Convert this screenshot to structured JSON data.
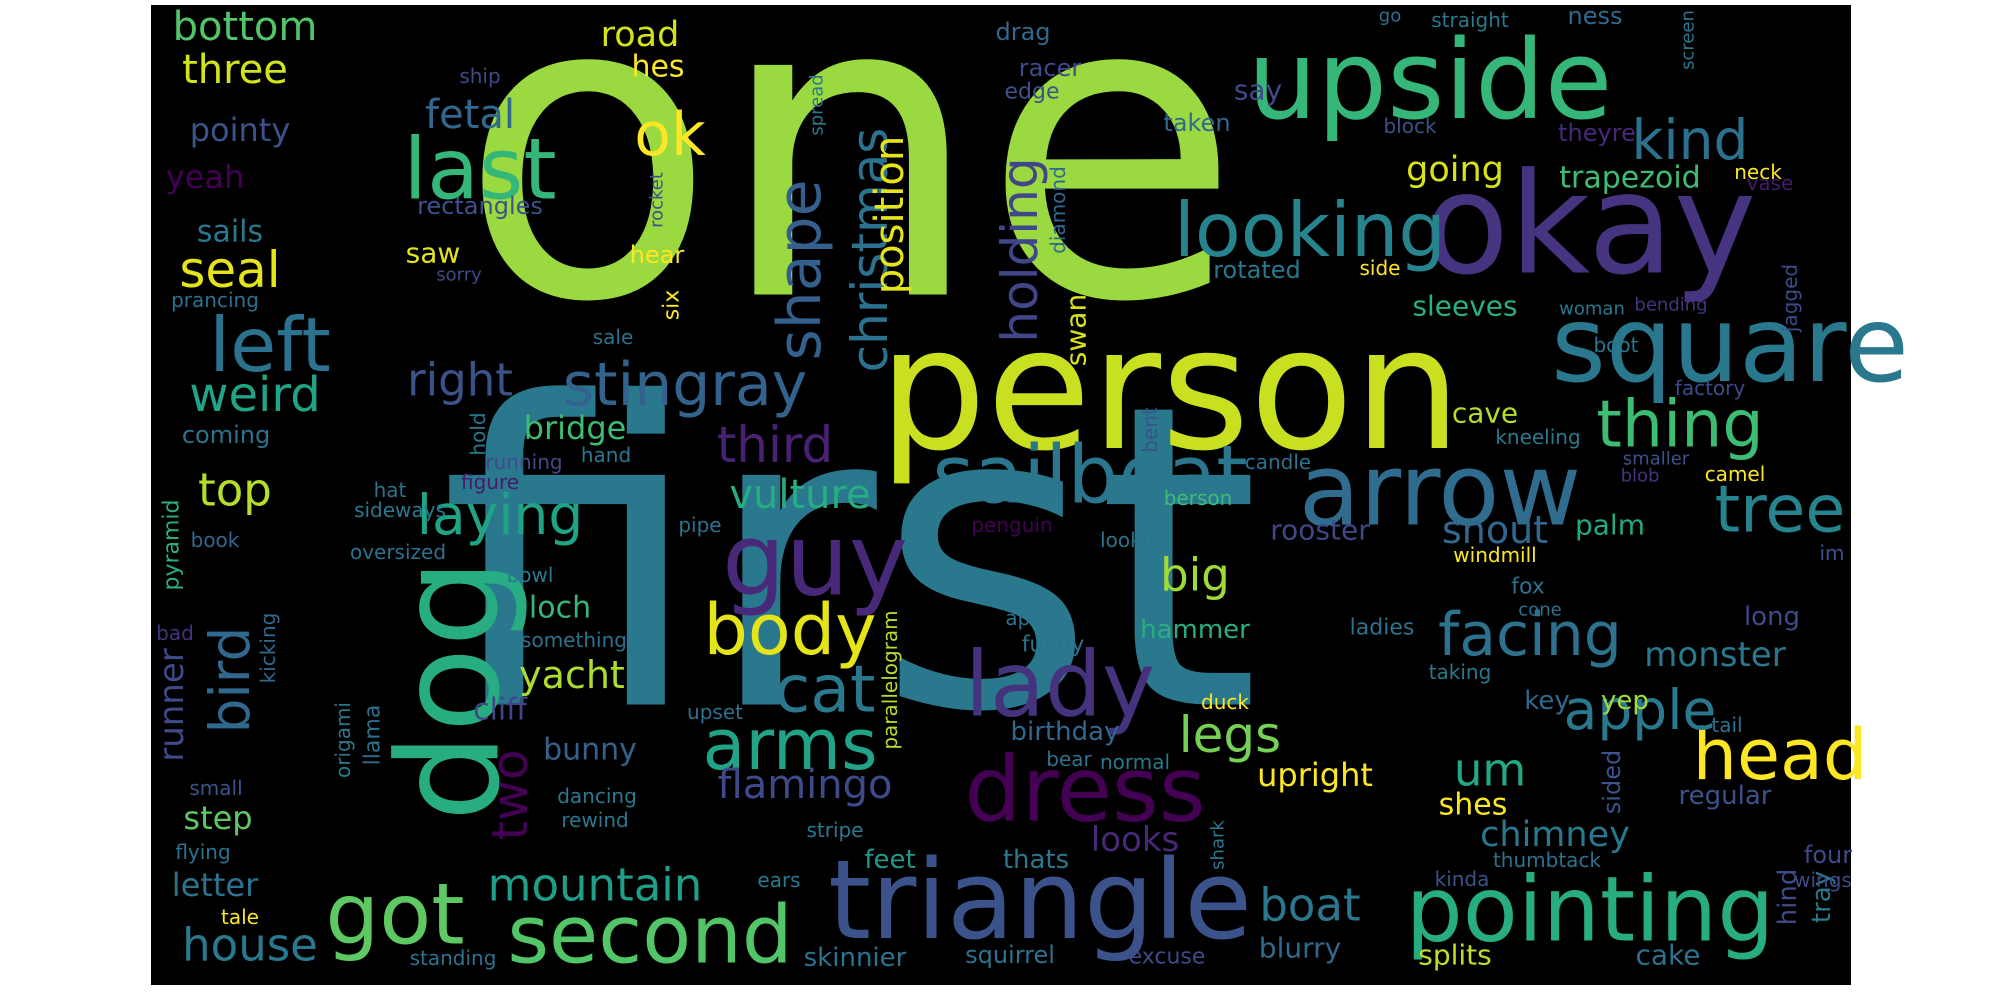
{
  "background_color": "#000000",
  "page_color": "#ffffff",
  "colormap": "viridis",
  "words": [
    {
      "text": "one",
      "color": "#9bd940"
    },
    {
      "text": "first",
      "color": "#2a788e"
    },
    {
      "text": "person",
      "color": "#c8e020"
    },
    {
      "text": "upside",
      "color": "#35b779"
    },
    {
      "text": "okay",
      "color": "#463480"
    },
    {
      "text": "square",
      "color": "#2a788e"
    },
    {
      "text": "arrow",
      "color": "#2f6c8e"
    },
    {
      "text": "triangle",
      "color": "#3b528b"
    },
    {
      "text": "dog",
      "color": "#27ad81"
    },
    {
      "text": "sailboat",
      "color": "#2a768e"
    },
    {
      "text": "pointing",
      "color": "#27ad81"
    },
    {
      "text": "second",
      "color": "#52c569"
    },
    {
      "text": "guy",
      "color": "#482878"
    },
    {
      "text": "dress",
      "color": "#440154"
    },
    {
      "text": "lady",
      "color": "#46337e"
    },
    {
      "text": "last",
      "color": "#35b779"
    },
    {
      "text": "looking",
      "color": "#25848e"
    },
    {
      "text": "head",
      "color": "#fde725"
    },
    {
      "text": "body",
      "color": "#e5e419"
    },
    {
      "text": "got",
      "color": "#5ec962"
    },
    {
      "text": "arms",
      "color": "#20a386"
    },
    {
      "text": "left",
      "color": "#2c728e"
    },
    {
      "text": "thing",
      "color": "#3dbc74"
    },
    {
      "text": "tree",
      "color": "#25848e"
    },
    {
      "text": "facing",
      "color": "#2c728e"
    },
    {
      "text": "cat",
      "color": "#2a788e"
    },
    {
      "text": "stingray",
      "color": "#33638d"
    },
    {
      "text": "right",
      "color": "#3b528b"
    },
    {
      "text": "mountain",
      "color": "#1f9e89"
    },
    {
      "text": "shape",
      "color": "#355f8d"
    },
    {
      "text": "laying",
      "color": "#20a486"
    },
    {
      "text": "third",
      "color": "#482173"
    },
    {
      "text": "ok",
      "color": "#fde725"
    },
    {
      "text": "christmas",
      "color": "#2c728e"
    },
    {
      "text": "holding",
      "color": "#404688"
    },
    {
      "text": "apple",
      "color": "#2a788e"
    },
    {
      "text": "house",
      "color": "#2a788e"
    },
    {
      "text": "seal",
      "color": "#e5e419"
    },
    {
      "text": "weird",
      "color": "#20a486"
    },
    {
      "text": "bird",
      "color": "#31688e"
    },
    {
      "text": "kind",
      "color": "#2d708e"
    },
    {
      "text": "boat",
      "color": "#2a788e"
    },
    {
      "text": "legs",
      "color": "#75d054"
    },
    {
      "text": "flamingo",
      "color": "#3e4a89"
    },
    {
      "text": "position",
      "color": "#e5e419"
    },
    {
      "text": "vulture",
      "color": "#27ad81"
    },
    {
      "text": "big",
      "color": "#a0da39"
    },
    {
      "text": "two",
      "color": "#440154"
    },
    {
      "text": "um",
      "color": "#22a884"
    },
    {
      "text": "top",
      "color": "#b5de2b"
    },
    {
      "text": "snout",
      "color": "#31688e"
    },
    {
      "text": "bottom",
      "color": "#52c569"
    },
    {
      "text": "three",
      "color": "#d2e21b"
    },
    {
      "text": "fetal",
      "color": "#31688e"
    },
    {
      "text": "pointy",
      "color": "#3b528b"
    },
    {
      "text": "yacht",
      "color": "#addc30"
    },
    {
      "text": "monster",
      "color": "#2a788e"
    },
    {
      "text": "bird runner",
      "color": "#440154"
    },
    {
      "text": "runner",
      "color": "#3e4a89"
    },
    {
      "text": "road",
      "color": "#d2e21b"
    },
    {
      "text": "going",
      "color": "#d8e219"
    },
    {
      "text": "chimney",
      "color": "#2a788e"
    },
    {
      "text": "looks",
      "color": "#482878"
    },
    {
      "text": "letter",
      "color": "#2c728e"
    },
    {
      "text": "upright",
      "color": "#fde725"
    },
    {
      "text": "step",
      "color": "#5ec962"
    },
    {
      "text": "bridge",
      "color": "#3dbc74"
    },
    {
      "text": "cliff",
      "color": "#404688"
    },
    {
      "text": "bunny",
      "color": "#33638d"
    },
    {
      "text": "loch",
      "color": "#35b779"
    },
    {
      "text": "cave",
      "color": "#b5de2b"
    },
    {
      "text": "palm",
      "color": "#22a884"
    },
    {
      "text": "rooster",
      "color": "#404688"
    },
    {
      "text": "hammer",
      "color": "#29af7f"
    },
    {
      "text": "birthday",
      "color": "#31688e"
    },
    {
      "text": "shes",
      "color": "#fde725"
    },
    {
      "text": "feet",
      "color": "#1f988b"
    },
    {
      "text": "blurry",
      "color": "#31688e"
    },
    {
      "text": "splits",
      "color": "#bddf26"
    },
    {
      "text": "cake",
      "color": "#2c728e"
    },
    {
      "text": "skinnier",
      "color": "#2c728e"
    },
    {
      "text": "squirrel",
      "color": "#2c728e"
    },
    {
      "text": "trapezoid",
      "color": "#3dbc74"
    },
    {
      "text": "sleeves",
      "color": "#2ab07f"
    },
    {
      "text": "saw",
      "color": "#e5e419"
    },
    {
      "text": "sails",
      "color": "#2a788e"
    },
    {
      "text": "yeah",
      "color": "#440154"
    },
    {
      "text": "hes",
      "color": "#fde725"
    },
    {
      "text": "say",
      "color": "#3e4a89"
    },
    {
      "text": "drag",
      "color": "#31688e"
    },
    {
      "text": "racer",
      "color": "#3e4a89"
    },
    {
      "text": "edge",
      "color": "#3b528b"
    },
    {
      "text": "taken",
      "color": "#31688e"
    },
    {
      "text": "theyre",
      "color": "#482878"
    },
    {
      "text": "ness",
      "color": "#31688e"
    },
    {
      "text": "go",
      "color": "#2c728e"
    },
    {
      "text": "straight",
      "color": "#2a788e"
    },
    {
      "text": "screen",
      "color": "#2a788e"
    },
    {
      "text": "block",
      "color": "#3b528b"
    },
    {
      "text": "neck",
      "color": "#fde725"
    },
    {
      "text": "vase",
      "color": "#481a6c"
    },
    {
      "text": "swan",
      "color": "#d8e219"
    },
    {
      "text": "diamond",
      "color": "#31688e"
    },
    {
      "text": "rotated",
      "color": "#2a788e"
    },
    {
      "text": "side",
      "color": "#fde725"
    },
    {
      "text": "jagged",
      "color": "#3e4a89"
    },
    {
      "text": "woman",
      "color": "#2a788e"
    },
    {
      "text": "bending",
      "color": "#46337e"
    },
    {
      "text": "factory",
      "color": "#3e4a89"
    },
    {
      "text": "boot",
      "color": "#2a788e"
    },
    {
      "text": "kneeling",
      "color": "#2a788e"
    },
    {
      "text": "smaller",
      "color": "#3b528b"
    },
    {
      "text": "camel",
      "color": "#fde725"
    },
    {
      "text": "blob",
      "color": "#46337e"
    },
    {
      "text": "windmill",
      "color": "#fde725"
    },
    {
      "text": "im",
      "color": "#3b528b"
    },
    {
      "text": "fox",
      "color": "#2c728e"
    },
    {
      "text": "cone",
      "color": "#2c728e"
    },
    {
      "text": "ladies",
      "color": "#2c728e"
    },
    {
      "text": "taking",
      "color": "#2a788e"
    },
    {
      "text": "long",
      "color": "#3e4a89"
    },
    {
      "text": "key",
      "color": "#31688e"
    },
    {
      "text": "yep",
      "color": "#a0da39"
    },
    {
      "text": "tail",
      "color": "#2c728e"
    },
    {
      "text": "regular",
      "color": "#3b528b"
    },
    {
      "text": "hind",
      "color": "#3e4a89"
    },
    {
      "text": "tray",
      "color": "#2a788e"
    },
    {
      "text": "four",
      "color": "#3e4a89"
    },
    {
      "text": "wings",
      "color": "#3e4a89"
    },
    {
      "text": "kinda",
      "color": "#3b528b"
    },
    {
      "text": "thumbtack",
      "color": "#2c728e"
    },
    {
      "text": "sided",
      "color": "#3b528b"
    },
    {
      "text": "shark",
      "color": "#2a788e"
    },
    {
      "text": "excuse",
      "color": "#3e4a89"
    },
    {
      "text": "thats",
      "color": "#2a788e"
    },
    {
      "text": "bear",
      "color": "#2c728e"
    },
    {
      "text": "normal",
      "color": "#2a788e"
    },
    {
      "text": "duck",
      "color": "#fde725"
    },
    {
      "text": "funny",
      "color": "#2c728e"
    },
    {
      "text": "apart",
      "color": "#2c728e"
    },
    {
      "text": "upset",
      "color": "#2c728e"
    },
    {
      "text": "parallelogram",
      "color": "#b5de2b"
    },
    {
      "text": "dancing",
      "color": "#2a788e"
    },
    {
      "text": "rewind",
      "color": "#2a788e"
    },
    {
      "text": "stripe",
      "color": "#2a788e"
    },
    {
      "text": "ears",
      "color": "#2a788e"
    },
    {
      "text": "tale",
      "color": "#fde725"
    },
    {
      "text": "standing",
      "color": "#2c728e"
    },
    {
      "text": "flying",
      "color": "#2c728e"
    },
    {
      "text": "small",
      "color": "#3b528b"
    },
    {
      "text": "origami",
      "color": "#2a788e"
    },
    {
      "text": "kicking",
      "color": "#31688e"
    },
    {
      "text": "llama",
      "color": "#2c728e"
    },
    {
      "text": "bad",
      "color": "#46337e"
    },
    {
      "text": "something",
      "color": "#2c728e"
    },
    {
      "text": "book",
      "color": "#31688e"
    },
    {
      "text": "pyramid",
      "color": "#2ab07f"
    },
    {
      "text": "hat",
      "color": "#2c728e"
    },
    {
      "text": "sideways",
      "color": "#2a788e"
    },
    {
      "text": "oversized",
      "color": "#2c728e"
    },
    {
      "text": "bowl",
      "color": "#2a788e"
    },
    {
      "text": "pipe",
      "color": "#2c728e"
    },
    {
      "text": "penguin",
      "color": "#440154"
    },
    {
      "text": "lookin",
      "color": "#2c728e"
    },
    {
      "text": "berson",
      "color": "#3dbc74"
    },
    {
      "text": "hand",
      "color": "#2a788e"
    },
    {
      "text": "figure",
      "color": "#481a6c"
    },
    {
      "text": "running",
      "color": "#3e4a89"
    },
    {
      "text": "hold",
      "color": "#2a788e"
    },
    {
      "text": "candle",
      "color": "#2c728e"
    },
    {
      "text": "bent",
      "color": "#3b528b"
    },
    {
      "text": "coming",
      "color": "#2c728e"
    },
    {
      "text": "sale",
      "color": "#2c728e"
    },
    {
      "text": "prancing",
      "color": "#2c728e"
    },
    {
      "text": "sorry",
      "color": "#3e4a89"
    },
    {
      "text": "rectangles",
      "color": "#3b528b"
    },
    {
      "text": "ship",
      "color": "#3e4a89"
    },
    {
      "text": "spread",
      "color": "#2a788e"
    },
    {
      "text": "rocket",
      "color": "#3b528b"
    },
    {
      "text": "hear",
      "color": "#fde725"
    },
    {
      "text": "six",
      "color": "#fde725"
    }
  ]
}
